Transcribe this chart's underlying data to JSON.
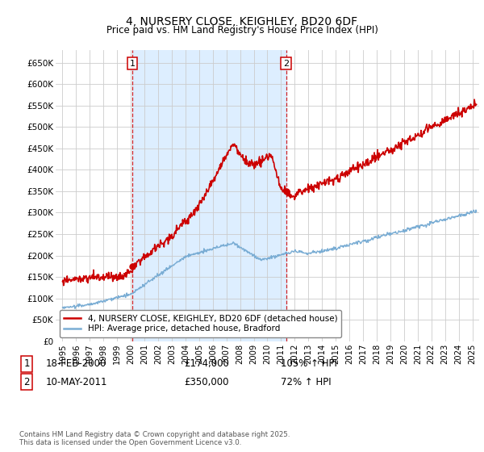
{
  "title": "4, NURSERY CLOSE, KEIGHLEY, BD20 6DF",
  "subtitle": "Price paid vs. HM Land Registry's House Price Index (HPI)",
  "legend_line1": "4, NURSERY CLOSE, KEIGHLEY, BD20 6DF (detached house)",
  "legend_line2": "HPI: Average price, detached house, Bradford",
  "footnote": "Contains HM Land Registry data © Crown copyright and database right 2025.\nThis data is licensed under the Open Government Licence v3.0.",
  "sale1_label": "1",
  "sale1_date": "18-FEB-2000",
  "sale1_price": "£174,000",
  "sale1_hpi": "105% ↑ HPI",
  "sale2_label": "2",
  "sale2_date": "10-MAY-2011",
  "sale2_price": "£350,000",
  "sale2_hpi": "72% ↑ HPI",
  "hpi_color": "#7aadd4",
  "price_color": "#cc0000",
  "shade_color": "#ddeeff",
  "marker1_x": 2000.12,
  "marker1_y": 174000,
  "marker2_x": 2011.36,
  "marker2_y": 350000,
  "vline1_x": 2000.12,
  "vline2_x": 2011.36,
  "ylim": [
    0,
    680000
  ],
  "xlim_start": 1994.5,
  "xlim_end": 2025.5,
  "yticks": [
    0,
    50000,
    100000,
    150000,
    200000,
    250000,
    300000,
    350000,
    400000,
    450000,
    500000,
    550000,
    600000,
    650000
  ],
  "ytick_labels": [
    "£0",
    "£50K",
    "£100K",
    "£150K",
    "£200K",
    "£250K",
    "£300K",
    "£350K",
    "£400K",
    "£450K",
    "£500K",
    "£550K",
    "£600K",
    "£650K"
  ],
  "xticks": [
    1995,
    1996,
    1997,
    1998,
    1999,
    2000,
    2001,
    2002,
    2003,
    2004,
    2005,
    2006,
    2007,
    2008,
    2009,
    2010,
    2011,
    2012,
    2013,
    2014,
    2015,
    2016,
    2017,
    2018,
    2019,
    2020,
    2021,
    2022,
    2023,
    2024,
    2025
  ],
  "background_color": "#ffffff",
  "grid_color": "#cccccc"
}
